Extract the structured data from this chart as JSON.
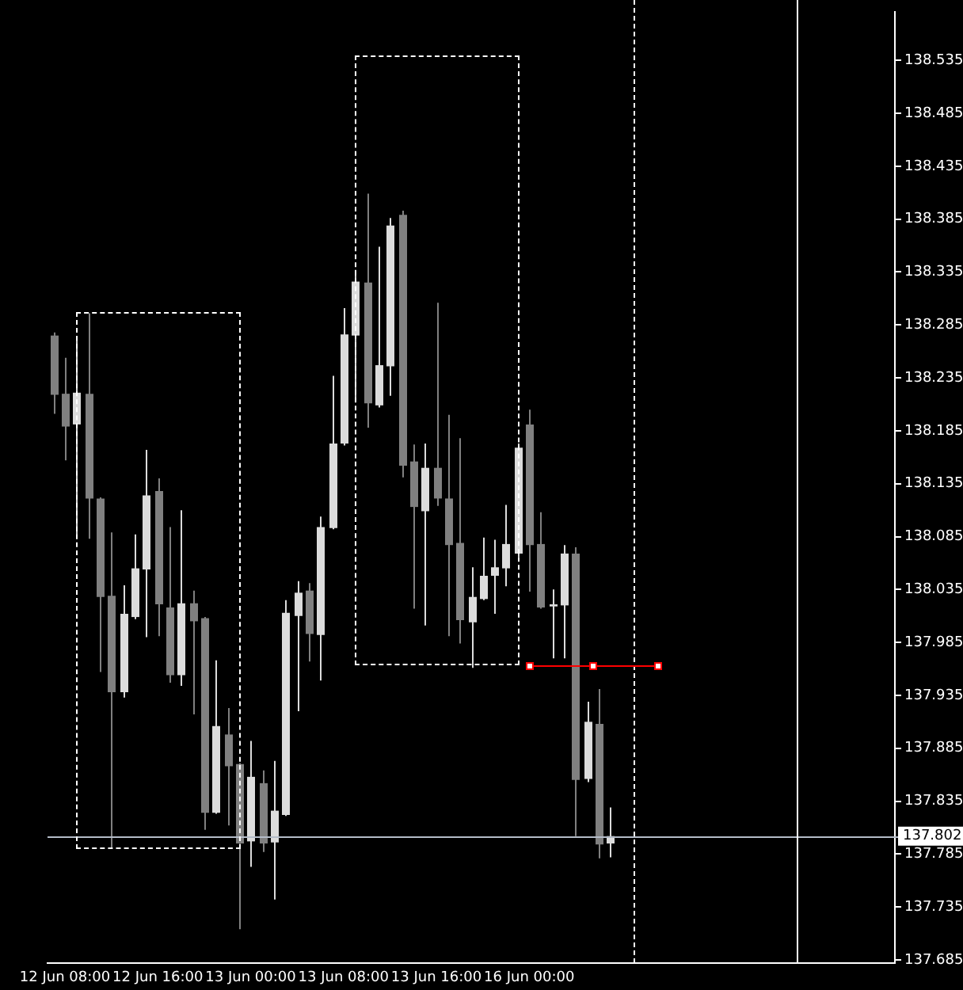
{
  "chart_data": {
    "type": "candlestick",
    "categories": [
      null,
      "12 Jun 08:00",
      null,
      null,
      null,
      null,
      null,
      null,
      null,
      "12 Jun 16:00",
      null,
      null,
      null,
      null,
      null,
      null,
      null,
      "13 Jun 00:00",
      null,
      null,
      null,
      null,
      null,
      null,
      null,
      "13 Jun 08:00",
      null,
      null,
      null,
      null,
      null,
      null,
      null,
      "13 Jun 16:00",
      null,
      null,
      null,
      null,
      null,
      null,
      null,
      "16 Jun 00:00",
      null,
      null,
      null,
      null,
      null,
      null,
      null,
      null,
      null,
      null,
      null,
      null,
      null,
      null,
      null,
      null,
      null,
      null,
      null,
      null,
      null,
      null,
      null,
      null,
      null,
      null,
      null,
      null,
      null,
      null,
      null
    ],
    "ohlc": [
      [
        138.275,
        138.278,
        138.201,
        138.219
      ],
      [
        138.22,
        138.254,
        138.157,
        138.189
      ],
      [
        138.191,
        138.273,
        138.083,
        138.221
      ],
      [
        138.22,
        138.296,
        138.083,
        138.121
      ],
      [
        138.121,
        138.122,
        137.957,
        138.028
      ],
      [
        138.029,
        138.089,
        137.79,
        137.938
      ],
      [
        137.938,
        138.039,
        137.933,
        138.012
      ],
      [
        138.009,
        138.087,
        138.007,
        138.055
      ],
      [
        138.054,
        138.167,
        137.99,
        138.124
      ],
      [
        138.128,
        138.14,
        137.991,
        138.021
      ],
      [
        138.018,
        138.094,
        137.947,
        137.954
      ],
      [
        137.954,
        138.11,
        137.944,
        138.022
      ],
      [
        138.022,
        138.034,
        137.917,
        138.005
      ],
      [
        138.008,
        138.009,
        137.808,
        137.824
      ],
      [
        137.824,
        137.968,
        137.823,
        137.906
      ],
      [
        137.898,
        137.923,
        137.812,
        137.868
      ],
      [
        137.87,
        137.871,
        137.714,
        137.795
      ],
      [
        137.797,
        137.892,
        137.773,
        137.858
      ],
      [
        137.852,
        137.864,
        137.787,
        137.795
      ],
      [
        137.796,
        137.873,
        137.742,
        137.826
      ],
      [
        137.822,
        138.025,
        137.821,
        138.013
      ],
      [
        138.01,
        138.043,
        137.92,
        138.032
      ],
      [
        138.034,
        138.041,
        137.967,
        137.993
      ],
      [
        137.992,
        138.104,
        137.949,
        138.094
      ],
      [
        138.093,
        138.237,
        138.092,
        138.173
      ],
      [
        138.173,
        138.301,
        138.171,
        138.276
      ],
      [
        138.275,
        138.337,
        138.214,
        138.326
      ],
      [
        138.325,
        138.409,
        138.188,
        138.211
      ],
      [
        138.209,
        138.359,
        138.207,
        138.247
      ],
      [
        138.246,
        138.386,
        138.218,
        138.379
      ],
      [
        138.389,
        138.393,
        138.141,
        138.152
      ],
      [
        138.156,
        138.172,
        138.017,
        138.113
      ],
      [
        138.109,
        138.173,
        138.001,
        138.15
      ],
      [
        138.15,
        138.306,
        138.114,
        138.121
      ],
      [
        138.121,
        138.2,
        137.991,
        138.077
      ],
      [
        138.079,
        138.178,
        137.984,
        138.006
      ],
      [
        138.004,
        138.056,
        137.961,
        138.028
      ],
      [
        138.026,
        138.084,
        138.025,
        138.048
      ],
      [
        138.048,
        138.082,
        138.012,
        138.056
      ],
      [
        138.055,
        138.115,
        138.038,
        138.078
      ],
      [
        138.069,
        138.173,
        138.066,
        138.169
      ],
      [
        138.191,
        138.205,
        138.033,
        138.077
      ],
      [
        138.078,
        138.108,
        138.017,
        138.018
      ],
      [
        138.019,
        138.035,
        137.97,
        138.021
      ],
      [
        138.02,
        138.077,
        137.97,
        138.069
      ],
      [
        138.069,
        138.075,
        137.802,
        137.855
      ],
      [
        137.856,
        137.929,
        137.853,
        137.91
      ],
      [
        137.908,
        137.941,
        137.781,
        137.794
      ],
      [
        137.795,
        137.829,
        137.782,
        137.802
      ],
      null,
      null,
      null,
      null,
      null,
      null,
      null,
      null,
      null,
      null,
      null,
      null,
      null,
      null,
      null,
      null,
      null,
      null,
      null,
      null,
      null,
      null,
      null,
      null
    ],
    "colors": [
      "#808080",
      "#808080",
      "#dcdcdc",
      "#808080",
      "#808080",
      "#808080",
      "#dcdcdc",
      "#dcdcdc",
      "#dcdcdc",
      "#808080",
      "#808080",
      "#dcdcdc",
      "#808080",
      "#808080",
      "#dcdcdc",
      "#808080",
      "#808080",
      "#dcdcdc",
      "#808080",
      "#dcdcdc",
      "#dcdcdc",
      "#dcdcdc",
      "#808080",
      "#dcdcdc",
      "#dcdcdc",
      "#dcdcdc",
      "#dcdcdc",
      "#808080",
      "#dcdcdc",
      "#dcdcdc",
      "#808080",
      "#808080",
      "#dcdcdc",
      "#808080",
      "#808080",
      "#808080",
      "#dcdcdc",
      "#dcdcdc",
      "#dcdcdc",
      "#dcdcdc",
      "#dcdcdc",
      "#808080",
      "#808080",
      "#dcdcdc",
      "#dcdcdc",
      "#808080",
      "#dcdcdc",
      "#808080",
      "#dcdcdc",
      null,
      null,
      null,
      null,
      null,
      null,
      null,
      null,
      null,
      null,
      null,
      null,
      null,
      null,
      null,
      null,
      null,
      null,
      null,
      null,
      null,
      null,
      null,
      null
    ],
    "ylim": [
      137.682,
      138.581
    ],
    "yticks": [
      137.685,
      137.735,
      137.785,
      137.835,
      137.885,
      137.935,
      137.985,
      138.035,
      138.085,
      138.135,
      138.185,
      138.235,
      138.285,
      138.335,
      138.385,
      138.435,
      138.485,
      138.535
    ],
    "ref_lines": [
      {
        "axis": "y",
        "value": 137.802,
        "label": "137.802",
        "color": "#b4bcc8"
      }
    ],
    "grid": false,
    "legend": false
  }
}
